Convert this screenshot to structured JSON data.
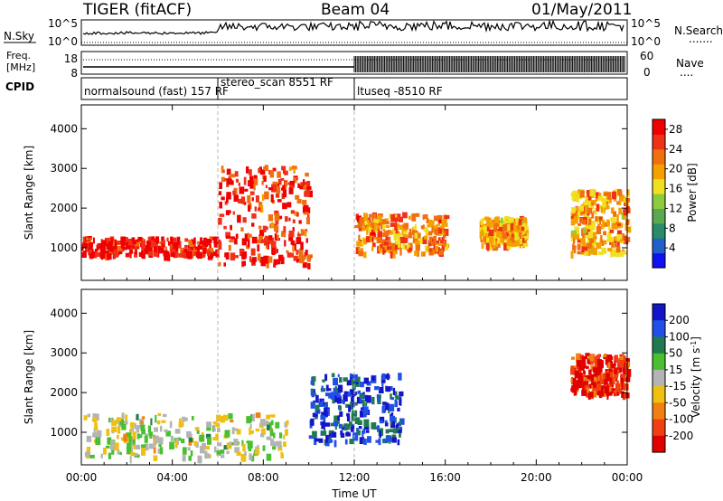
{
  "header": {
    "radar": "TIGER (fitACF)",
    "beam": "Beam 04",
    "date": "01/May/2011"
  },
  "summary_panels": {
    "nsky": {
      "left_label": "N.Sky",
      "left_ticks": [
        "10^5",
        "10^0"
      ],
      "right_ticks": [
        "10^5",
        "10^0"
      ],
      "right_label": "N.Search",
      "right_legend": "......."
    },
    "freq": {
      "left_label_1": "Freq.",
      "left_label_2": "[MHz]",
      "left_ticks": [
        "18",
        "8"
      ],
      "right_ticks": [
        "60",
        "0"
      ],
      "right_label": "Nave",
      "right_legend": "...."
    },
    "cpid": {
      "label": "CPID",
      "segments": [
        {
          "start_h": 0,
          "end_h": 6,
          "name": "normalsound (fast) 157 RF"
        },
        {
          "start_h": 6,
          "end_h": 12,
          "name": "stereo_scan 8551 RF"
        },
        {
          "start_h": 12,
          "end_h": 24,
          "name": "ltuseq -8510 RF"
        }
      ]
    }
  },
  "chart_data": [
    {
      "type": "heatmap",
      "title": "",
      "xlabel": "Time UT",
      "ylabel": "Slant Range [km]",
      "xlim": [
        0,
        24
      ],
      "ylim": [
        180,
        4600
      ],
      "x_ticks": [
        "00:00",
        "04:00",
        "08:00",
        "12:00",
        "16:00",
        "20:00",
        "00:00"
      ],
      "y_ticks": [
        1000,
        2000,
        3000,
        4000
      ],
      "colorbar": {
        "label": "Power [dB]",
        "ticks": [
          4,
          8,
          12,
          16,
          20,
          24,
          28
        ],
        "range": [
          0,
          30
        ],
        "colors": [
          "#1010f0",
          "#2060c8",
          "#2a8a6a",
          "#5aa850",
          "#8ccc3c",
          "#f0e020",
          "#f5a000",
          "#f07010",
          "#f03018",
          "#f00000"
        ]
      },
      "features": [
        {
          "kind": "echo band",
          "start_h": 0,
          "end_h": 6,
          "range_low_km": 850,
          "range_high_km": 1300,
          "power_db": 28
        },
        {
          "kind": "echo band",
          "start_h": 6,
          "end_h": 10,
          "range_low_km": 600,
          "range_high_km": 3100,
          "power_db": 26
        },
        {
          "kind": "echo band",
          "start_h": 12,
          "end_h": 16,
          "range_low_km": 900,
          "range_high_km": 1900,
          "power_db": 22
        },
        {
          "kind": "echo band",
          "start_h": 17.5,
          "end_h": 19.5,
          "range_low_km": 1100,
          "range_high_km": 1800,
          "power_db": 20
        },
        {
          "kind": "echo band",
          "start_h": 21.5,
          "end_h": 24,
          "range_low_km": 900,
          "range_high_km": 2500,
          "power_db": 20
        }
      ]
    },
    {
      "type": "heatmap",
      "title": "",
      "xlabel": "Time UT",
      "ylabel": "Slant Range [km]",
      "xlim": [
        0,
        24
      ],
      "ylim": [
        180,
        4600
      ],
      "x_ticks": [
        "00:00",
        "04:00",
        "08:00",
        "12:00",
        "16:00",
        "20:00",
        "00:00"
      ],
      "y_ticks": [
        1000,
        2000,
        3000,
        4000
      ],
      "colorbar": {
        "label": "Velocity [m s^-1]",
        "ticks": [
          "200",
          "100",
          "50",
          "15",
          "-15",
          "-50",
          "-100",
          "-200"
        ],
        "range": [
          -250,
          250
        ],
        "colors": [
          "#1414c8",
          "#2050e8",
          "#207a50",
          "#48c030",
          "#b4b4b4",
          "#f0c010",
          "#f08010",
          "#f04010",
          "#e00000"
        ]
      },
      "features": [
        {
          "kind": "ground scatter",
          "start_h": 0,
          "end_h": 9,
          "range_low_km": 400,
          "range_high_km": 1500,
          "velocity_ms": 0
        },
        {
          "kind": "echo band",
          "start_h": 10,
          "end_h": 14,
          "range_low_km": 800,
          "range_high_km": 2500,
          "velocity_ms": 180
        },
        {
          "kind": "echo band",
          "start_h": 21.5,
          "end_h": 24,
          "range_low_km": 2000,
          "range_high_km": 3000,
          "velocity_ms": -200
        }
      ]
    }
  ]
}
